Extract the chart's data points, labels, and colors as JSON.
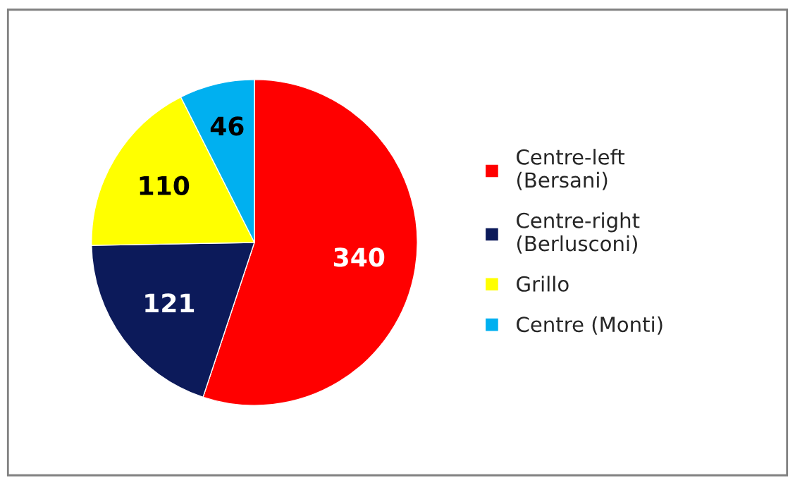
{
  "chart_data": {
    "type": "pie",
    "categories": [
      "Centre-left\n(Bersani)",
      "Centre-right\n(Berlusconi)",
      "Grillo",
      "Centre (Monti)"
    ],
    "values": [
      340,
      121,
      110,
      46
    ],
    "colors": [
      "#ff0000",
      "#0c1a5a",
      "#ffff00",
      "#00b0f0"
    ],
    "data_labels": true,
    "legend": "right"
  }
}
